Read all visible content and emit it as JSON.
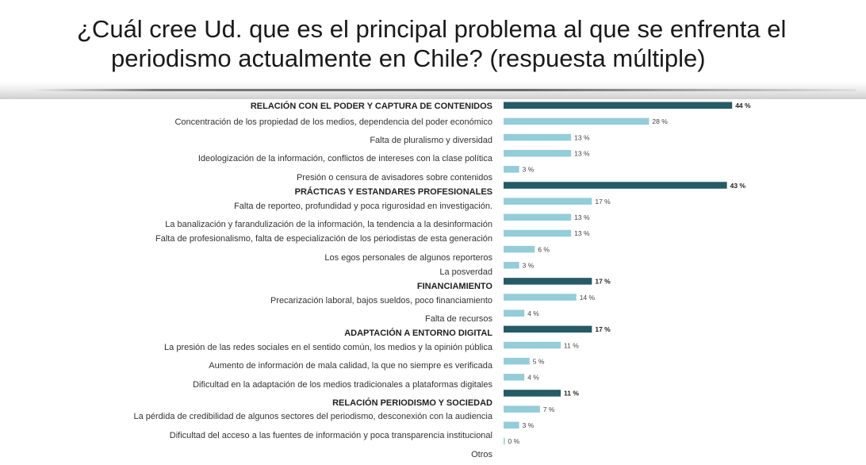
{
  "title": {
    "line1": "¿Cuál cree Ud. que es el principal problema al que se enfrenta el",
    "line2": "periodismo actualmente en Chile? (respuesta múltiple)"
  },
  "colors": {
    "category": "#255a67",
    "item": "#93cdd9"
  },
  "chart_data": {
    "type": "bar",
    "orientation": "horizontal",
    "unit": "%",
    "xlim": [
      0,
      50
    ],
    "grid": false,
    "rows": [
      {
        "label": "RELACIÓN CON EL PODER Y CAPTURA DE CONTENIDOS",
        "value": 44,
        "display": "44 %",
        "kind": "category"
      },
      {
        "label": "Concentración de los propiedad de los medios, dependencia del poder económico",
        "value": 28,
        "display": "28 %",
        "kind": "item"
      },
      {
        "label": "Falta de pluralismo y diversidad",
        "value": 13,
        "display": "13 %",
        "kind": "item"
      },
      {
        "label": "Ideologización de la información, conflictos de intereses con la clase política",
        "value": 13,
        "display": "13 %",
        "kind": "item"
      },
      {
        "label": "Presión o censura de avisadores sobre contenidos",
        "value": 3,
        "display": "3 %",
        "kind": "item"
      },
      {
        "label": "PRÁCTICAS Y ESTANDARES PROFESIONALES",
        "value": 43,
        "display": "43 %",
        "kind": "category"
      },
      {
        "label": "Falta de reporteo, profundidad y poca rigurosidad en investigación.",
        "value": 17,
        "display": "17 %",
        "kind": "item"
      },
      {
        "label": "La banalización y farandulización de la información, la tendencia a la desinformación",
        "value": 13,
        "display": "13 %",
        "kind": "item"
      },
      {
        "label": "Falta de profesionalismo, falta de especialización de los periodistas de esta generación",
        "value": 13,
        "display": "13 %",
        "kind": "item"
      },
      {
        "label": "Los egos personales de algunos reporteros",
        "value": 6,
        "display": "6 %",
        "kind": "item"
      },
      {
        "label": "La posverdad",
        "value": 3,
        "display": "3 %",
        "kind": "item"
      },
      {
        "label": "FINANCIAMIENTO",
        "value": 17,
        "display": "17 %",
        "kind": "category"
      },
      {
        "label": "Precarización laboral, bajos sueldos, poco financiamiento",
        "value": 14,
        "display": "14 %",
        "kind": "item"
      },
      {
        "label": "Falta de recursos",
        "value": 4,
        "display": "4 %",
        "kind": "item"
      },
      {
        "label": "ADAPTACIÓN A ENTORNO DIGITAL",
        "value": 17,
        "display": "17 %",
        "kind": "category"
      },
      {
        "label": "La presión de las redes sociales en el sentido común, los medios y la opinión pública",
        "value": 11,
        "display": "11 %",
        "kind": "item"
      },
      {
        "label": "Aumento de información de mala calidad, la que no siempre es verificada",
        "value": 5,
        "display": "5 %",
        "kind": "item"
      },
      {
        "label": "Dificultad en la adaptación de los medios tradicionales a plataformas digitales",
        "value": 4,
        "display": "4 %",
        "kind": "item"
      },
      {
        "label": "RELACIÓN PERIODISMO Y SOCIEDAD",
        "value": 11,
        "display": "11 %",
        "kind": "category"
      },
      {
        "label": "La pérdida de credibilidad de algunos sectores del periodismo, desconexión con la audiencia",
        "value": 7,
        "display": "7 %",
        "kind": "item"
      },
      {
        "label": "Dificultad del acceso a las fuentes de información y poca transparencia institucional",
        "value": 3,
        "display": "3 %",
        "kind": "item"
      },
      {
        "label": "Otros",
        "value": 0,
        "display": "0 %",
        "kind": "item"
      }
    ]
  }
}
